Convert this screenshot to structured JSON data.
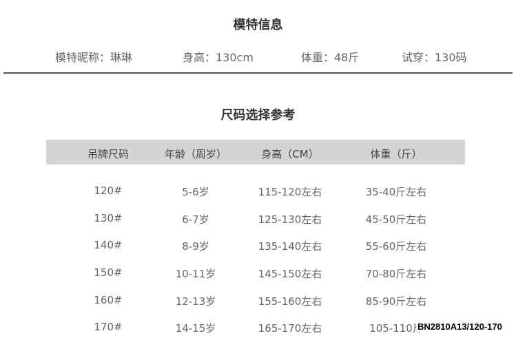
{
  "model_info": {
    "title": "模特信息",
    "nickname": "模特昵称：琳琳",
    "height": "身高：130cm",
    "weight": "体重：48斤",
    "tried_size": "试穿：130码"
  },
  "size_guide": {
    "title": "尺码选择参考",
    "header_bg": "#d4d4d4",
    "columns": [
      "吊牌尺码",
      "年龄（周岁）",
      "身高（CM）",
      "体重（斤）"
    ],
    "rows": [
      [
        "120#",
        "5-6岁",
        "115-120左右",
        "35-40斤左右"
      ],
      [
        "130#",
        "6-7岁",
        "125-130左右",
        "45-50斤左右"
      ],
      [
        "140#",
        "8-9岁",
        "135-140左右",
        "55-60斤左右"
      ],
      [
        "150#",
        "10-11岁",
        "145-150左右",
        "70-80斤左右"
      ],
      [
        "160#",
        "12-13岁",
        "155-160左右",
        "85-90斤左右"
      ],
      [
        "170#",
        "14-15岁",
        "165-170左右",
        "105-110斤"
      ]
    ]
  },
  "product_code": "BN2810A13/120-170"
}
